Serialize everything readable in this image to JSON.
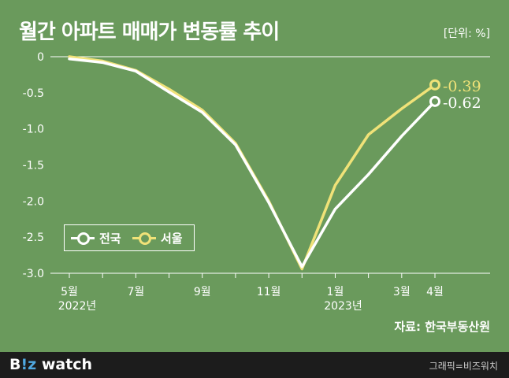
{
  "title": "월간 아파트 매매가 변동률 추이",
  "unit_label": "[단위: %]",
  "source": "자료: 한국부동산원",
  "footer": {
    "brand_prefix": "B",
    "brand_bz": "!z",
    "brand_suffix": " watch",
    "credit": "그래픽=비즈워치"
  },
  "colors": {
    "background": "#6a9a5c",
    "national": "#ffffff",
    "seoul": "#f0e278"
  },
  "chart_data": {
    "type": "line",
    "x_ticks": [
      "5월",
      "",
      "7월",
      "",
      "9월",
      "",
      "11월",
      "",
      "1월",
      "",
      "3월",
      "4월"
    ],
    "x_year_labels": [
      {
        "index": 0,
        "label": "2022년"
      },
      {
        "index": 8,
        "label": "2023년"
      }
    ],
    "y_ticks": [
      "0",
      "-0.5",
      "-1.0",
      "-1.5",
      "-2.0",
      "-2.5",
      "-3.0"
    ],
    "ylim": [
      -3.0,
      0
    ],
    "series": [
      {
        "name": "전국",
        "color": "#ffffff",
        "values": [
          -0.03,
          -0.08,
          -0.2,
          -0.49,
          -0.77,
          -1.22,
          -2.02,
          -2.91,
          -2.11,
          -1.63,
          -1.1,
          -0.62
        ],
        "end_label": "-0.62"
      },
      {
        "name": "서울",
        "color": "#f0e278",
        "values": [
          0.0,
          -0.06,
          -0.19,
          -0.45,
          -0.74,
          -1.2,
          -2.0,
          -2.94,
          -1.78,
          -1.08,
          -0.72,
          -0.39
        ],
        "end_label": "-0.39"
      }
    ],
    "legend": "bottom-left"
  }
}
